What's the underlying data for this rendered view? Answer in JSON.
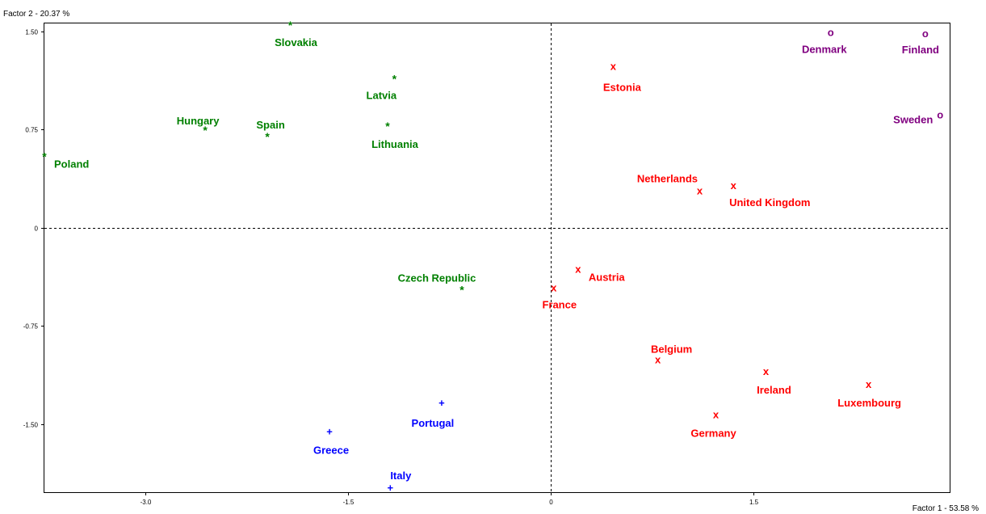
{
  "chart_data": {
    "type": "scatter",
    "title": "",
    "xlabel": "Factor 1  -  53.58 %",
    "ylabel": "Factor 2  -  20.37 %",
    "xlim": [
      -3.75,
      2.95
    ],
    "ylim": [
      -2.02,
      1.56
    ],
    "x_ticks": [
      -3.0,
      -1.5,
      0,
      1.5
    ],
    "x_tick_labels": [
      "-3.0",
      "-1.5",
      "0",
      "1.5"
    ],
    "y_ticks": [
      1.5,
      0.75,
      0,
      -0.75,
      -1.5
    ],
    "y_tick_labels": [
      "1.50",
      "0.75",
      "0",
      "-0.75",
      "-1.50"
    ],
    "grid": false,
    "reference_lines": "dashed lines at x = 0 and y = 0",
    "series": [
      {
        "marker": "*",
        "color": "#008000",
        "points": [
          {
            "label": "Slovakia",
            "x": -1.93,
            "y": 1.54
          },
          {
            "label": "Latvia",
            "x": -1.16,
            "y": 1.13
          },
          {
            "label": "Lithuania",
            "x": -1.21,
            "y": 0.77
          },
          {
            "label": "Hungary",
            "x": -2.56,
            "y": 0.74
          },
          {
            "label": "Spain",
            "x": -2.1,
            "y": 0.69
          },
          {
            "label": "Poland",
            "x": -3.75,
            "y": 0.54
          },
          {
            "label": "Czech Republic",
            "x": -0.66,
            "y": -0.48
          }
        ]
      },
      {
        "marker": "x",
        "color": "#ff0000",
        "points": [
          {
            "label": "Estonia",
            "x": 0.46,
            "y": 1.23
          },
          {
            "label": "Netherlands",
            "x": 1.1,
            "y": 0.28
          },
          {
            "label": "United Kingdom",
            "x": 1.35,
            "y": 0.32
          },
          {
            "label": "Austria",
            "x": 0.2,
            "y": -0.32
          },
          {
            "label": "France",
            "x": 0.02,
            "y": -0.46
          },
          {
            "label": "Belgium",
            "x": 0.79,
            "y": -1.01
          },
          {
            "label": "Ireland",
            "x": 1.59,
            "y": -1.1
          },
          {
            "label": "Luxembourg",
            "x": 2.35,
            "y": -1.2
          },
          {
            "label": "Germany",
            "x": 1.22,
            "y": -1.43
          }
        ]
      },
      {
        "marker": "o",
        "color": "#800080",
        "points": [
          {
            "label": "Denmark",
            "x": 2.07,
            "y": 1.49
          },
          {
            "label": "Finland",
            "x": 2.77,
            "y": 1.48
          },
          {
            "label": "Sweden",
            "x": 2.88,
            "y": 0.86
          }
        ]
      },
      {
        "marker": "+",
        "color": "#0000ff",
        "points": [
          {
            "label": "Portugal",
            "x": -0.81,
            "y": -1.34
          },
          {
            "label": "Greece",
            "x": -1.64,
            "y": -1.56
          },
          {
            "label": "Italy",
            "x": -1.19,
            "y": -1.99
          }
        ]
      }
    ]
  }
}
